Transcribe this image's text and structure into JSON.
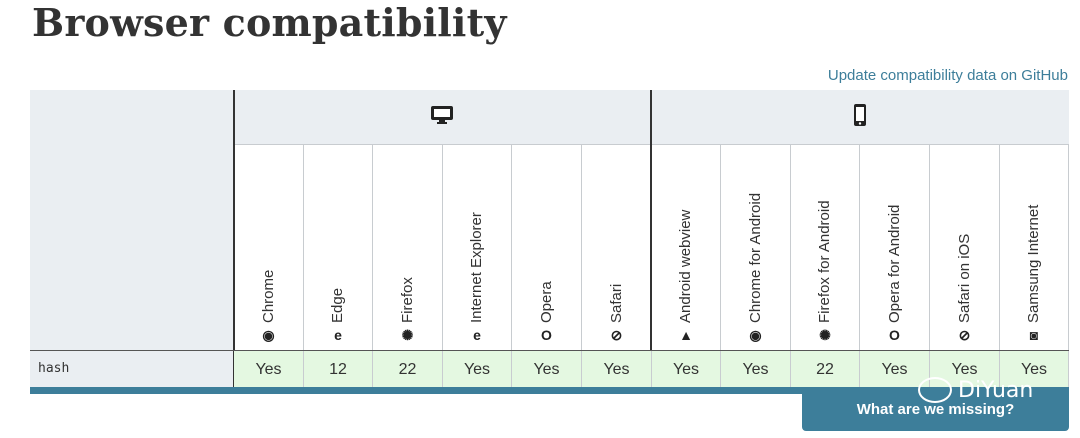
{
  "page": {
    "title": "Browser compatibility",
    "github_link": "Update compatibility data on GitHub"
  },
  "platforms": [
    {
      "name": "desktop",
      "icon": "desktop-icon"
    },
    {
      "name": "mobile",
      "icon": "mobile-icon"
    }
  ],
  "browsers": [
    {
      "name": "Chrome",
      "icon": "chrome-icon",
      "value": "Yes"
    },
    {
      "name": "Edge",
      "icon": "edge-icon",
      "value": "12"
    },
    {
      "name": "Firefox",
      "icon": "firefox-icon",
      "value": "22"
    },
    {
      "name": "Internet Explorer",
      "icon": "ie-icon",
      "value": "Yes"
    },
    {
      "name": "Opera",
      "icon": "opera-icon",
      "value": "Yes"
    },
    {
      "name": "Safari",
      "icon": "safari-icon",
      "value": "Yes"
    },
    {
      "name": "Android webview",
      "icon": "android-icon",
      "value": "Yes"
    },
    {
      "name": "Chrome for Android",
      "icon": "chrome-icon",
      "value": "Yes"
    },
    {
      "name": "Firefox for Android",
      "icon": "firefox-icon",
      "value": "22"
    },
    {
      "name": "Opera for Android",
      "icon": "opera-icon",
      "value": "Yes"
    },
    {
      "name": "Safari on iOS",
      "icon": "safari-icon",
      "value": "Yes"
    },
    {
      "name": "Samsung Internet",
      "icon": "samsung-icon",
      "value": "Yes"
    }
  ],
  "feature": {
    "name": "hash"
  },
  "footer": {
    "missing_button": "What are we missing?"
  },
  "watermark": {
    "text": "DiYuan"
  },
  "colors": {
    "accent": "#3d7e9a",
    "supported_bg": "#e4f8e1",
    "header_bg": "#eaeef2"
  }
}
